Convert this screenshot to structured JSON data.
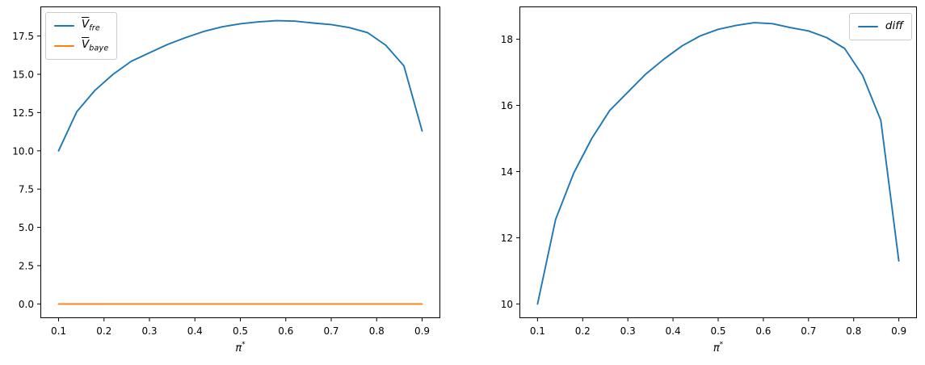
{
  "figure": {
    "background": "#ffffff",
    "axis_color": "#000000",
    "accent_blue": "#1f77b4",
    "accent_orange": "#ff7f0e"
  },
  "chart_data": [
    {
      "type": "line",
      "name": "left-chart",
      "title": "",
      "xlabel_base": "π",
      "xlabel_sup": "*",
      "xlim": [
        0.06,
        0.94
      ],
      "ylim": [
        -0.93,
        19.43
      ],
      "xticks": [
        0.1,
        0.2,
        0.3,
        0.4,
        0.5,
        0.6,
        0.7,
        0.8,
        0.9
      ],
      "xtick_labels": [
        "0.1",
        "0.2",
        "0.3",
        "0.4",
        "0.5",
        "0.6",
        "0.7",
        "0.8",
        "0.9"
      ],
      "yticks": [
        0.0,
        2.5,
        5.0,
        7.5,
        10.0,
        12.5,
        15.0,
        17.5
      ],
      "ytick_labels": [
        "0.0",
        "2.5",
        "5.0",
        "7.5",
        "10.0",
        "12.5",
        "15.0",
        "17.5"
      ],
      "grid": false,
      "legend_position": "upper left",
      "x": [
        0.1,
        0.14,
        0.18,
        0.22,
        0.26,
        0.3,
        0.34,
        0.38,
        0.42,
        0.46,
        0.5,
        0.54,
        0.58,
        0.62,
        0.66,
        0.7,
        0.74,
        0.78,
        0.82,
        0.86,
        0.9
      ],
      "series": [
        {
          "id": "vfre",
          "label_base": "V",
          "label_overline": true,
          "label_sub": "fre",
          "color": "#1f77b4",
          "values": [
            10.0,
            12.55,
            13.95,
            15.0,
            15.85,
            16.4,
            16.95,
            17.4,
            17.8,
            18.1,
            18.3,
            18.42,
            18.5,
            18.47,
            18.35,
            18.25,
            18.05,
            17.72,
            16.9,
            15.55,
            11.3
          ]
        },
        {
          "id": "vbaye",
          "label_base": "V",
          "label_overline": true,
          "label_sub": "baye",
          "color": "#ff7f0e",
          "values": [
            0.0,
            0.0,
            0.0,
            0.0,
            0.0,
            0.0,
            0.0,
            0.0,
            0.0,
            0.0,
            0.0,
            0.0,
            0.0,
            0.0,
            0.0,
            0.0,
            0.0,
            0.0,
            0.0,
            0.0,
            0.0
          ]
        }
      ]
    },
    {
      "type": "line",
      "name": "right-chart",
      "title": "",
      "xlabel_base": "π",
      "xlabel_sup": "*",
      "xlim": [
        0.06,
        0.94
      ],
      "ylim": [
        9.57,
        18.99
      ],
      "xticks": [
        0.1,
        0.2,
        0.3,
        0.4,
        0.5,
        0.6,
        0.7,
        0.8,
        0.9
      ],
      "xtick_labels": [
        "0.1",
        "0.2",
        "0.3",
        "0.4",
        "0.5",
        "0.6",
        "0.7",
        "0.8",
        "0.9"
      ],
      "yticks": [
        10,
        12,
        14,
        16,
        18
      ],
      "ytick_labels": [
        "10",
        "12",
        "14",
        "16",
        "18"
      ],
      "grid": false,
      "legend_position": "upper right",
      "x": [
        0.1,
        0.14,
        0.18,
        0.22,
        0.26,
        0.3,
        0.34,
        0.38,
        0.42,
        0.46,
        0.5,
        0.54,
        0.58,
        0.62,
        0.66,
        0.7,
        0.74,
        0.78,
        0.82,
        0.86,
        0.9
      ],
      "series": [
        {
          "id": "diff",
          "label_base": "diff",
          "label_overline": false,
          "label_sub": "",
          "color": "#1f77b4",
          "values": [
            10.0,
            12.55,
            13.95,
            15.0,
            15.85,
            16.4,
            16.95,
            17.4,
            17.8,
            18.1,
            18.3,
            18.42,
            18.5,
            18.47,
            18.35,
            18.25,
            18.05,
            17.72,
            16.9,
            15.55,
            11.3
          ]
        }
      ]
    }
  ]
}
